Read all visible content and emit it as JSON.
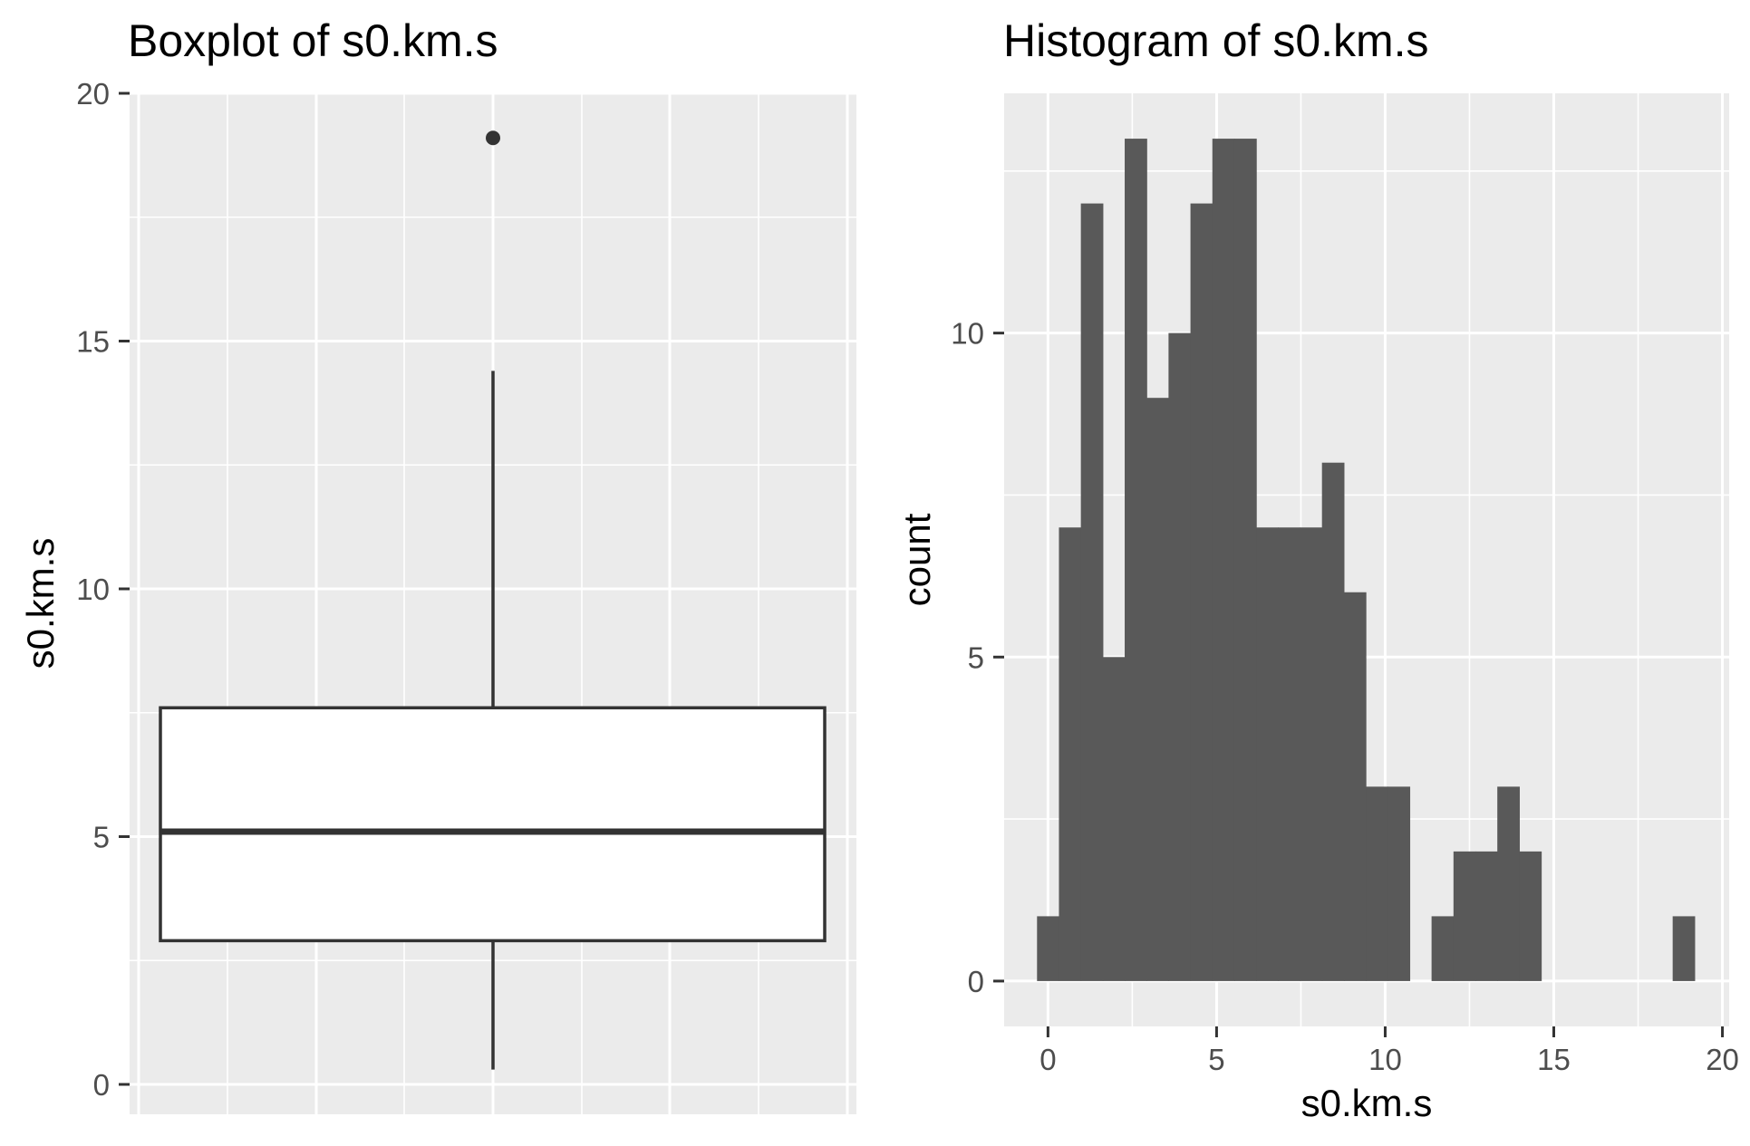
{
  "chart_data": [
    {
      "type": "boxplot",
      "title": "Boxplot of s0.km.s",
      "xlabel": "",
      "ylabel": "s0.km.s",
      "ylim": [
        0,
        20
      ],
      "yticks": [
        0,
        5,
        10,
        15,
        20
      ],
      "box": {
        "whisker_low": 0.3,
        "q1": 2.9,
        "median": 5.1,
        "q3": 7.6,
        "whisker_high": 14.4
      },
      "outliers": [
        19.1
      ],
      "colors": {
        "panel": "#ebebeb",
        "grid": "#ffffff",
        "box_fill": "#ffffff",
        "line": "#333333"
      },
      "grid": true
    },
    {
      "type": "bar",
      "subtype": "histogram",
      "title": "Histogram of s0.km.s",
      "xlabel": "s0.km.s",
      "ylabel": "count",
      "xlim": [
        -1.3,
        20.2
      ],
      "ylim": [
        -0.7,
        13.7
      ],
      "xticks": [
        0,
        5,
        10,
        15,
        20
      ],
      "yticks": [
        0,
        5,
        10
      ],
      "bin_width": 0.65,
      "bin_centers": [
        0,
        0.65,
        1.3,
        1.95,
        2.6,
        3.25,
        3.9,
        4.55,
        5.2,
        5.85,
        6.5,
        7.15,
        7.8,
        8.45,
        9.1,
        9.75,
        10.4,
        11.05,
        11.7,
        12.35,
        13.0,
        13.65,
        14.3,
        14.95,
        15.6,
        16.25,
        16.9,
        17.55,
        18.2,
        18.85
      ],
      "counts": [
        1,
        7,
        12,
        5,
        13,
        9,
        10,
        12,
        13,
        13,
        7,
        7,
        7,
        8,
        6,
        3,
        3,
        0,
        1,
        2,
        2,
        3,
        2,
        0,
        0,
        0,
        0,
        0,
        0,
        1
      ],
      "colors": {
        "panel": "#ebebeb",
        "grid": "#ffffff",
        "bar_fill": "#595959"
      },
      "grid": true
    }
  ]
}
